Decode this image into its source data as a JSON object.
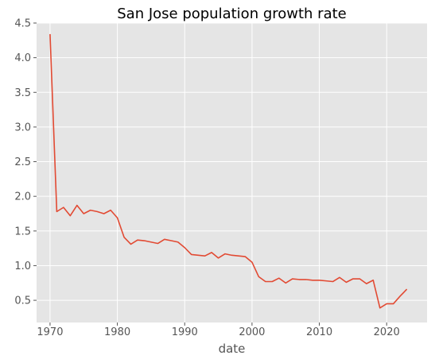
{
  "chart_data": {
    "type": "line",
    "title": "San Jose population growth rate",
    "xlabel": "date",
    "ylabel": "",
    "xlim": [
      1968,
      2026
    ],
    "ylim": [
      0.18,
      4.5
    ],
    "x_ticks": [
      1970,
      1980,
      1990,
      2000,
      2010,
      2020
    ],
    "y_ticks": [
      0.5,
      1.0,
      1.5,
      2.0,
      2.5,
      3.0,
      3.5,
      4.0,
      4.5
    ],
    "y_tick_labels": [
      "0.5",
      "1.0",
      "1.5",
      "2.0",
      "2.5",
      "3.0",
      "3.5",
      "4.0",
      "4.5"
    ],
    "grid": true,
    "style": {
      "background": "#E5E5E5",
      "grid_color": "#FFFFFF",
      "line_color": "#E24A33"
    },
    "series": [
      {
        "x": [
          1970,
          1971,
          1972,
          1973,
          1974,
          1975,
          1976,
          1977,
          1978,
          1979,
          1980,
          1981,
          1982,
          1983,
          1984,
          1985,
          1986,
          1987,
          1988,
          1989,
          1990,
          1991,
          1992,
          1993,
          1994,
          1995,
          1996,
          1997,
          1998,
          1999,
          2000,
          2001,
          2002,
          2003,
          2004,
          2005,
          2006,
          2007,
          2008,
          2009,
          2010,
          2011,
          2012,
          2013,
          2014,
          2015,
          2016,
          2017,
          2018,
          2019,
          2020,
          2021,
          2022,
          2023
        ],
        "values": [
          4.34,
          1.78,
          1.84,
          1.72,
          1.87,
          1.75,
          1.8,
          1.78,
          1.75,
          1.8,
          1.69,
          1.41,
          1.31,
          1.37,
          1.36,
          1.34,
          1.32,
          1.38,
          1.36,
          1.34,
          1.26,
          1.16,
          1.15,
          1.14,
          1.19,
          1.11,
          1.17,
          1.15,
          1.14,
          1.13,
          1.05,
          0.84,
          0.77,
          0.77,
          0.82,
          0.75,
          0.81,
          0.8,
          0.8,
          0.79,
          0.79,
          0.78,
          0.77,
          0.83,
          0.76,
          0.81,
          0.81,
          0.74,
          0.79,
          0.39,
          0.45,
          0.45,
          0.56,
          0.66
        ]
      }
    ]
  }
}
